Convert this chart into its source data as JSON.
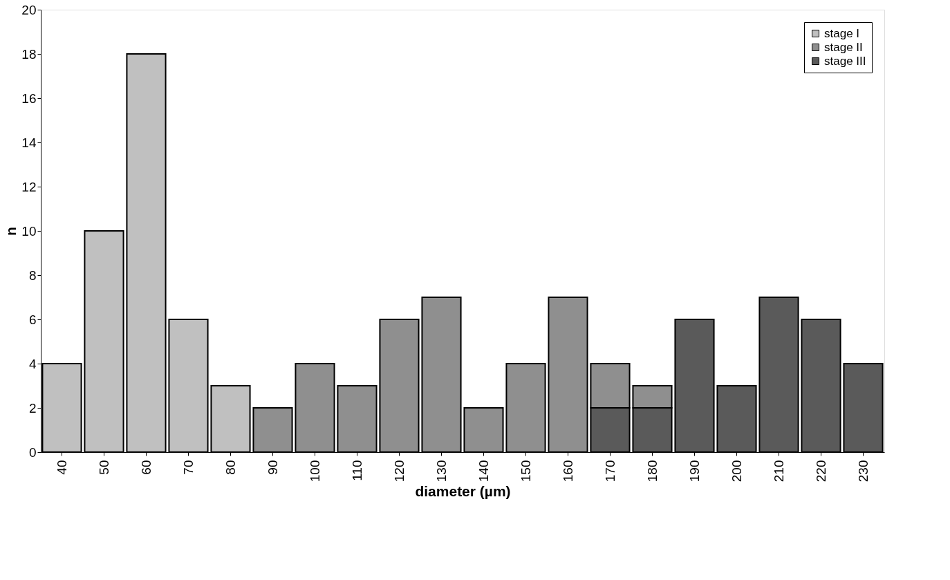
{
  "chart_data": {
    "type": "bar",
    "xlabel": "diameter (µm)",
    "ylabel": "n",
    "categories": [
      "40",
      "50",
      "60",
      "70",
      "80",
      "90",
      "100",
      "110",
      "120",
      "130",
      "140",
      "150",
      "160",
      "170",
      "180",
      "190",
      "200",
      "210",
      "220",
      "230"
    ],
    "stacked": true,
    "series": [
      {
        "name": "stage III",
        "color": "#5a5a5a",
        "values": [
          null,
          null,
          null,
          null,
          null,
          null,
          null,
          null,
          null,
          null,
          null,
          null,
          null,
          2,
          2,
          6,
          3,
          7,
          6,
          4
        ]
      },
      {
        "name": "stage II",
        "color": "#8f8f8f",
        "values": [
          null,
          null,
          null,
          null,
          null,
          2,
          4,
          3,
          6,
          7,
          2,
          4,
          7,
          2,
          1,
          null,
          null,
          null,
          null,
          null
        ]
      },
      {
        "name": "stage I",
        "color": "#c0c0c0",
        "values": [
          4,
          10,
          18,
          6,
          3,
          null,
          null,
          null,
          null,
          null,
          null,
          null,
          null,
          null,
          null,
          null,
          null,
          null,
          null,
          null
        ]
      }
    ],
    "ylim": [
      0,
      20
    ],
    "yticks": [
      0,
      2,
      4,
      6,
      8,
      10,
      12,
      14,
      16,
      18,
      20
    ],
    "grid": false,
    "legend": "top right"
  }
}
